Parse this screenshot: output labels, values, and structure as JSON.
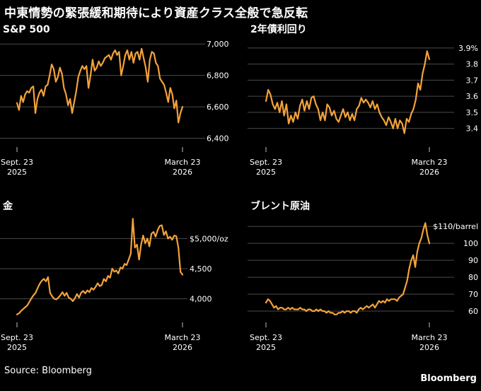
{
  "title": "中東情勢の緊張緩和期待により資産クラス全般で急反転",
  "footer": "Source: Bloomberg",
  "brand": "Bloomberg",
  "colors": {
    "line": "#F4A23A",
    "background": "#000000",
    "grid": "#4a4a4a"
  },
  "chart_data": [
    {
      "id": "sp500",
      "type": "line",
      "title": "S&P 500",
      "x_start": "Sept. 23 2025",
      "x_end": "March 23 2026",
      "xticks": [
        {
          "top": "Sept. 23",
          "bottom": "2025"
        },
        {
          "top": "March 23",
          "bottom": "2026"
        }
      ],
      "yticks": [
        {
          "value": 6400,
          "label": "6,400"
        },
        {
          "value": 6600,
          "label": "6,600"
        },
        {
          "value": 6800,
          "label": "6,800"
        },
        {
          "value": 7000,
          "label": "7,000"
        }
      ],
      "ylim": [
        6380,
        7010
      ],
      "values": [
        6625,
        6580,
        6670,
        6630,
        6680,
        6700,
        6690,
        6720,
        6730,
        6560,
        6650,
        6690,
        6710,
        6670,
        6730,
        6740,
        6800,
        6870,
        6840,
        6760,
        6790,
        6850,
        6810,
        6720,
        6680,
        6610,
        6650,
        6560,
        6630,
        6700,
        6790,
        6830,
        6860,
        6840,
        6860,
        6720,
        6800,
        6900,
        6830,
        6850,
        6890,
        6860,
        6880,
        6910,
        6920,
        6930,
        6900,
        6940,
        6960,
        6930,
        6950,
        6800,
        6860,
        6930,
        6960,
        6900,
        6950,
        6880,
        6940,
        6950,
        6900,
        6970,
        6910,
        6850,
        6760,
        6900,
        6950,
        6940,
        6880,
        6860,
        6780,
        6760,
        6740,
        6690,
        6630,
        6720,
        6680,
        6590,
        6640,
        6500,
        6560,
        6600
      ]
    },
    {
      "id": "us2y",
      "type": "line",
      "title": "2年債利回り",
      "x_start": "Sept. 23 2025",
      "x_end": "March 23 2026",
      "xticks": [
        {
          "top": "Sept. 23",
          "bottom": "2025"
        },
        {
          "top": "March 23",
          "bottom": "2026"
        }
      ],
      "yticks": [
        {
          "value": 3.4,
          "label": "3.4"
        },
        {
          "value": 3.5,
          "label": "3.5"
        },
        {
          "value": 3.6,
          "label": "3.6"
        },
        {
          "value": 3.7,
          "label": "3.7"
        },
        {
          "value": 3.8,
          "label": "3.8"
        },
        {
          "value": 3.9,
          "label": "3.9%"
        }
      ],
      "ylim": [
        3.35,
        3.93
      ],
      "values": [
        3.57,
        3.64,
        3.61,
        3.55,
        3.52,
        3.56,
        3.5,
        3.57,
        3.48,
        3.55,
        3.43,
        3.48,
        3.44,
        3.5,
        3.46,
        3.54,
        3.58,
        3.51,
        3.57,
        3.52,
        3.59,
        3.6,
        3.55,
        3.52,
        3.45,
        3.5,
        3.45,
        3.55,
        3.53,
        3.48,
        3.51,
        3.46,
        3.44,
        3.48,
        3.52,
        3.47,
        3.5,
        3.45,
        3.49,
        3.45,
        3.52,
        3.54,
        3.59,
        3.56,
        3.58,
        3.56,
        3.53,
        3.57,
        3.52,
        3.55,
        3.5,
        3.47,
        3.45,
        3.42,
        3.47,
        3.44,
        3.4,
        3.46,
        3.4,
        3.45,
        3.43,
        3.37,
        3.46,
        3.44,
        3.49,
        3.52,
        3.58,
        3.68,
        3.64,
        3.74,
        3.8,
        3.88,
        3.83
      ]
    },
    {
      "id": "gold",
      "type": "line",
      "title": "金",
      "x_start": "Sept. 23 2025",
      "x_end": "March 23 2026",
      "xticks": [
        {
          "top": "Sept. 23",
          "bottom": "2025"
        },
        {
          "top": "March 23",
          "bottom": "2026"
        }
      ],
      "yticks": [
        {
          "value": 4000,
          "label": "4,000"
        },
        {
          "value": 4500,
          "label": "4,500"
        },
        {
          "value": 5000,
          "label": "$5,000/oz"
        }
      ],
      "ylim": [
        3620,
        5380
      ],
      "values": [
        3740,
        3760,
        3800,
        3830,
        3860,
        3890,
        3950,
        4010,
        4060,
        4100,
        4180,
        4250,
        4300,
        4330,
        4290,
        4360,
        4100,
        4040,
        4000,
        3990,
        4020,
        4060,
        4110,
        4050,
        4100,
        4020,
        4000,
        3960,
        4010,
        4080,
        4020,
        4100,
        4130,
        4090,
        4140,
        4110,
        4180,
        4150,
        4200,
        4260,
        4210,
        4230,
        4330,
        4290,
        4380,
        4350,
        4500,
        4450,
        4470,
        4420,
        4520,
        4500,
        4580,
        4560,
        4650,
        4750,
        5330,
        4850,
        4900,
        4650,
        4900,
        5050,
        4920,
        5000,
        4870,
        5080,
        5110,
        5030,
        5140,
        5210,
        5220,
        5060,
        5120,
        5000,
        5030,
        4980,
        5050,
        5040,
        4850,
        4450,
        4400
      ]
    },
    {
      "id": "brent",
      "type": "line",
      "title": "ブレント原油",
      "x_start": "Sept. 23 2025",
      "x_end": "March 23 2026",
      "xticks": [
        {
          "top": "Sept. 23",
          "bottom": "2025"
        },
        {
          "top": "March 23",
          "bottom": "2026"
        }
      ],
      "yticks": [
        {
          "value": 60,
          "label": "60"
        },
        {
          "value": 70,
          "label": "70"
        },
        {
          "value": 80,
          "label": "80"
        },
        {
          "value": 90,
          "label": "90"
        },
        {
          "value": 100,
          "label": "100"
        },
        {
          "value": 110,
          "label": "$110/barrel"
        }
      ],
      "ylim": [
        55,
        113
      ],
      "values": [
        65,
        67,
        66,
        64,
        62,
        63,
        61,
        62,
        62,
        61,
        61,
        62,
        61,
        62,
        61,
        61,
        61,
        62,
        61,
        61,
        60,
        61,
        61,
        60,
        60,
        61,
        60,
        61,
        60,
        60,
        59,
        60,
        59,
        59,
        58,
        58,
        59,
        59,
        60,
        59,
        60,
        60,
        59,
        60,
        60,
        59,
        61,
        62,
        61,
        62,
        63,
        62,
        63,
        64,
        62,
        64,
        66,
        65,
        66,
        65,
        67,
        66,
        67,
        67,
        67,
        66,
        68,
        69,
        70,
        74,
        78,
        85,
        90,
        93,
        86,
        95,
        100,
        103,
        108,
        112,
        105,
        100
      ]
    }
  ]
}
